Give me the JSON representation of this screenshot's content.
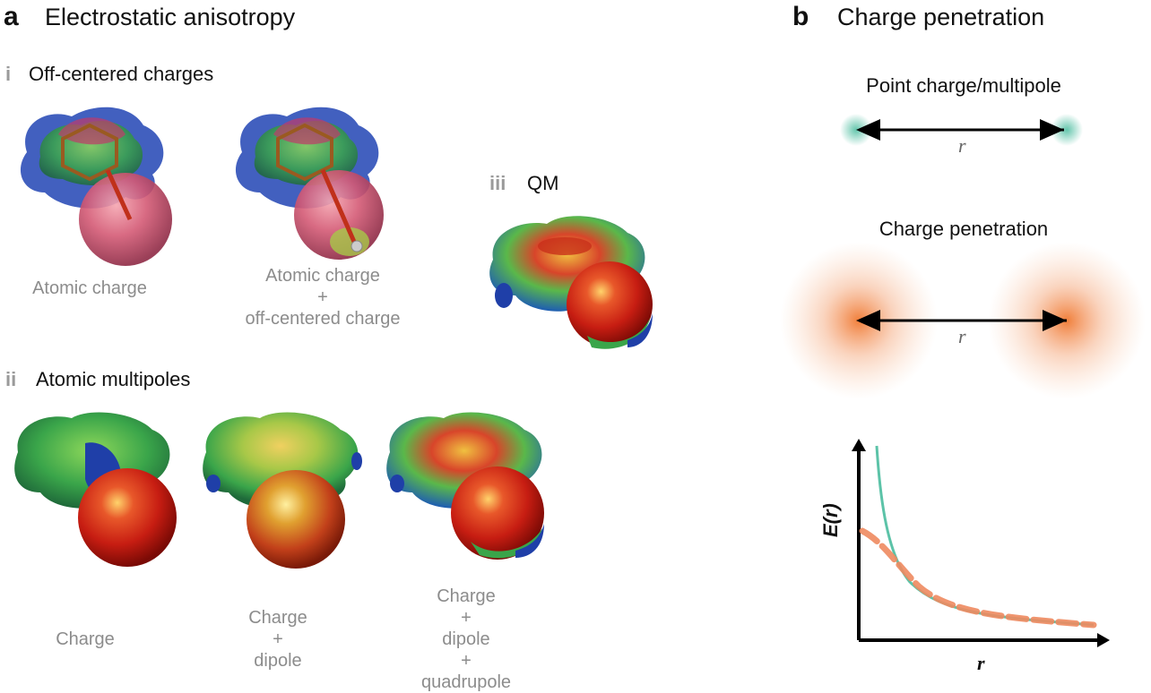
{
  "panel_a": {
    "letter": "a",
    "title": "Electrostatic anisotropy",
    "sub_i": {
      "roman": "i",
      "title": "Off-centered charges",
      "captions": [
        {
          "lines": [
            "Atomic charge"
          ]
        },
        {
          "lines": [
            "Atomic charge",
            "+",
            "off-centered charge"
          ]
        }
      ]
    },
    "sub_ii": {
      "roman": "ii",
      "title": "Atomic multipoles",
      "captions": [
        {
          "lines": [
            "Charge"
          ]
        },
        {
          "lines": [
            "Charge",
            "+",
            "dipole"
          ]
        },
        {
          "lines": [
            "Charge",
            "+",
            "dipole",
            "+",
            "quadrupole"
          ]
        }
      ]
    },
    "sub_iii": {
      "roman": "iii",
      "title": "QM"
    }
  },
  "panel_b": {
    "letter": "b",
    "title": "Charge penetration",
    "point_label": "Point charge/multipole",
    "penetration_label": "Charge penetration",
    "distance_symbol": "r",
    "graph": {
      "ylabel": "E(r)",
      "xlabel": "r",
      "series": [
        {
          "color": "#5cc3a8",
          "style": "solid"
        },
        {
          "color": "#ee8a5f",
          "style": "dashed"
        }
      ]
    }
  },
  "colors": {
    "point_glow": "#5cc3a8",
    "penetration_glow": "#f08a4b",
    "caption": "#8c8c8c"
  }
}
